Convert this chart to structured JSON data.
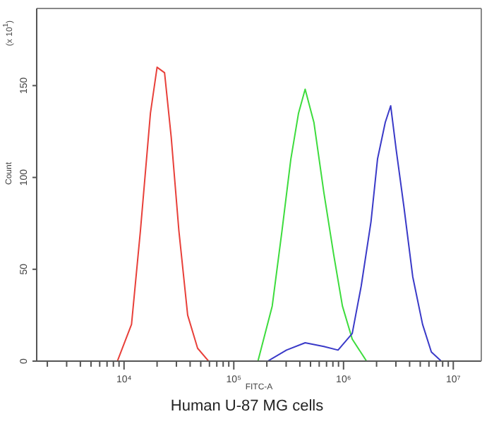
{
  "chart_data": {
    "type": "line",
    "xlabel": "FITC-A",
    "ylabel": "Count",
    "annotations": [
      "(x 10$^{1}$)",
      "Human U-87 MG cells"
    ],
    "log": "x",
    "marker": "none",
    "line_style": "solid",
    "xlim": [
      1600,
      18000000
    ],
    "ylim": [
      0,
      192
    ],
    "yticks": [
      0,
      50,
      100,
      150
    ],
    "xticks": [
      {
        "value": 2000,
        "label": null
      },
      {
        "value": 3000,
        "label": null
      },
      {
        "value": 4000,
        "label": null
      },
      {
        "value": 5000,
        "label": null
      },
      {
        "value": 6000,
        "label": null
      },
      {
        "value": 7000,
        "label": null
      },
      {
        "value": 8000,
        "label": null
      },
      {
        "value": 9000,
        "label": null
      },
      {
        "value": 10000,
        "label": "10⁴"
      },
      {
        "value": 20000,
        "label": null
      },
      {
        "value": 30000,
        "label": null
      },
      {
        "value": 40000,
        "label": null
      },
      {
        "value": 50000,
        "label": null
      },
      {
        "value": 60000,
        "label": null
      },
      {
        "value": 70000,
        "label": null
      },
      {
        "value": 80000,
        "label": null
      },
      {
        "value": 90000,
        "label": null
      },
      {
        "value": 100000,
        "label": "10⁵"
      },
      {
        "value": 200000,
        "label": null
      },
      {
        "value": 300000,
        "label": null
      },
      {
        "value": 400000,
        "label": null
      },
      {
        "value": 500000,
        "label": null
      },
      {
        "value": 600000,
        "label": null
      },
      {
        "value": 700000,
        "label": null
      },
      {
        "value": 800000,
        "label": null
      },
      {
        "value": 900000,
        "label": null
      },
      {
        "value": 1000000,
        "label": "10⁶"
      },
      {
        "value": 2000000,
        "label": null
      },
      {
        "value": 3000000,
        "label": null
      },
      {
        "value": 4000000,
        "label": null
      },
      {
        "value": 5000000,
        "label": null
      },
      {
        "value": 6000000,
        "label": null
      },
      {
        "value": 7000000,
        "label": null
      },
      {
        "value": 8000000,
        "label": null
      },
      {
        "value": 9000000,
        "label": null
      },
      {
        "value": 10000000,
        "label": "10⁷"
      }
    ],
    "series": [
      {
        "color": "#e8403a",
        "x": [
          8700,
          11700,
          14100,
          17400,
          20000,
          23400,
          26900,
          31600,
          38000,
          46800,
          58900
        ],
        "values": [
          0,
          20,
          71,
          135,
          160,
          157,
          122,
          71,
          25,
          7,
          0
        ]
      },
      {
        "color": "#3ddc3d",
        "x": [
          166000,
          224000,
          275000,
          331000,
          389000,
          447000,
          537000,
          661000,
          813000,
          977000,
          1200000,
          1620000
        ],
        "values": [
          0,
          30,
          71,
          110,
          135,
          148,
          130,
          92,
          58,
          30,
          12,
          0
        ]
      },
      {
        "color": "#3a3ac8",
        "x": [
          204000,
          302000,
          447000,
          661000,
          891000,
          1200000,
          1450000,
          1780000,
          2040000,
          2400000,
          2690000,
          3020000,
          3550000,
          4270000,
          5250000,
          6310000,
          7760000
        ],
        "values": [
          0,
          6,
          10,
          8,
          6,
          15,
          41,
          76,
          110,
          130,
          139,
          115,
          84,
          46,
          20,
          5,
          0
        ]
      }
    ]
  }
}
